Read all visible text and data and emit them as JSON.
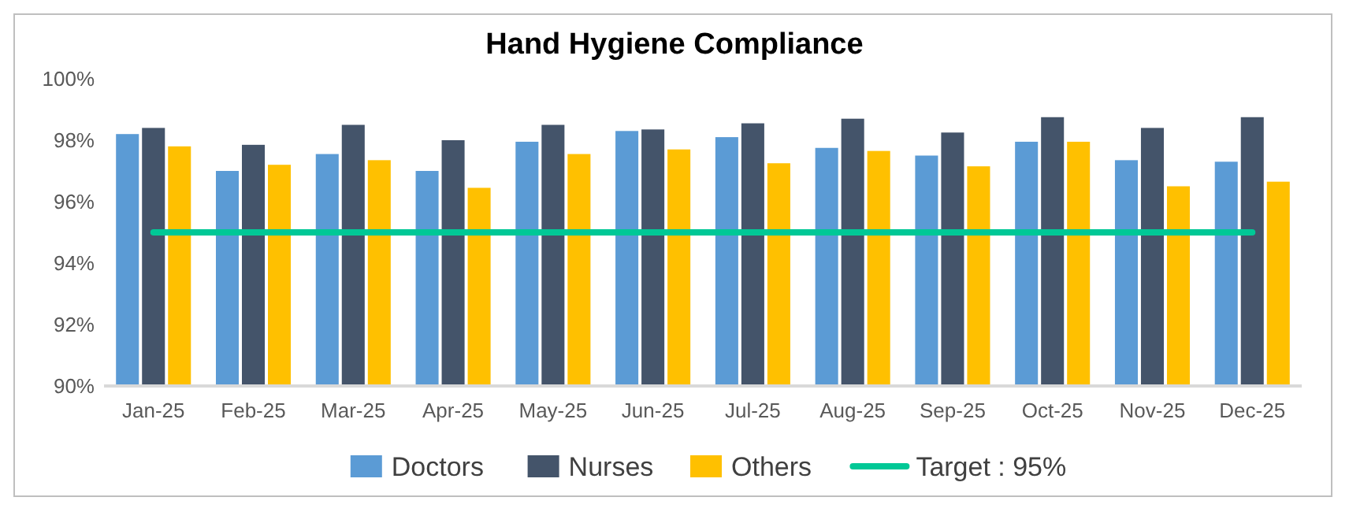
{
  "chart_data": {
    "type": "bar",
    "title": "Hand Hygiene Compliance",
    "categories": [
      "Jan-25",
      "Feb-25",
      "Mar-25",
      "Apr-25",
      "May-25",
      "Jun-25",
      "Jul-25",
      "Aug-25",
      "Sep-25",
      "Oct-25",
      "Nov-25",
      "Dec-25"
    ],
    "series": [
      {
        "name": "Doctors",
        "color": "#5b9bd5",
        "values": [
          98.2,
          97.0,
          97.55,
          97.0,
          97.95,
          98.3,
          98.1,
          97.75,
          97.5,
          97.95,
          97.35,
          97.3
        ]
      },
      {
        "name": "Nurses",
        "color": "#44546a",
        "values": [
          98.4,
          97.85,
          98.5,
          98.0,
          98.5,
          98.35,
          98.55,
          98.7,
          98.25,
          98.75,
          98.4,
          98.75
        ]
      },
      {
        "name": "Others",
        "color": "#ffc000",
        "values": [
          97.8,
          97.2,
          97.35,
          96.45,
          97.55,
          97.7,
          97.25,
          97.65,
          97.15,
          97.95,
          96.5,
          96.65
        ]
      }
    ],
    "ylim": [
      90,
      100
    ],
    "yticks": [
      {
        "value": 90,
        "label": "90%"
      },
      {
        "value": 92,
        "label": "92%"
      },
      {
        "value": 94,
        "label": "94%"
      },
      {
        "value": 96,
        "label": "96%"
      },
      {
        "value": 98,
        "label": "98%"
      },
      {
        "value": 100,
        "label": "100%"
      }
    ],
    "ref_lines": [
      {
        "axis": "y",
        "value": 95,
        "label": "Target : 95%",
        "color": "#00c896"
      }
    ],
    "grid": false,
    "legend": "bottom"
  }
}
